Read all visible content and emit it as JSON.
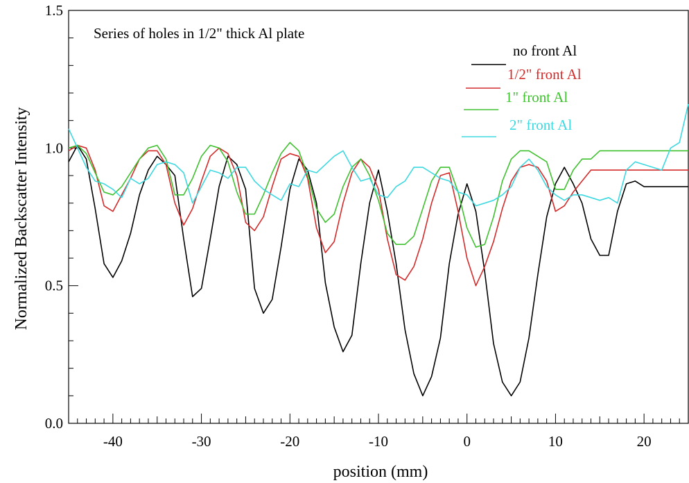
{
  "chart_data": {
    "type": "line",
    "title": "",
    "annotation": "Series of holes in 1/2\" thick Al plate",
    "xlabel": "position (mm)",
    "ylabel": "Normalized Backscatter Intensity",
    "xlim": [
      -45,
      25
    ],
    "ylim": [
      0.0,
      1.5
    ],
    "xticks": [
      -40,
      -30,
      -20,
      -10,
      0,
      10,
      20
    ],
    "xtick_labels": [
      "-40",
      "-30",
      "-20",
      "-10",
      "0",
      "10",
      "20"
    ],
    "yticks": [
      0.0,
      0.5,
      1.0,
      1.5
    ],
    "ytick_labels": [
      "0.0",
      "0.5",
      "1.0",
      "1.5"
    ],
    "grid": false,
    "legend_position": "top-right",
    "series": [
      {
        "name": "no front Al",
        "color": "#000000",
        "x": [
          -45,
          -44,
          -43,
          -42,
          -41,
          -40,
          -39,
          -38,
          -37,
          -36,
          -35,
          -34,
          -33,
          -32,
          -31,
          -30,
          -29,
          -28,
          -27,
          -26,
          -25,
          -24,
          -23,
          -22,
          -21,
          -20,
          -19,
          -18,
          -17,
          -16,
          -15,
          -14,
          -13,
          -12,
          -11,
          -10,
          -9,
          -8,
          -7,
          -6,
          -5,
          -4,
          -3,
          -2,
          -1,
          0,
          1,
          2,
          3,
          4,
          5,
          6,
          7,
          8,
          9,
          10,
          11,
          12,
          13,
          14,
          15,
          16,
          17,
          18,
          19,
          20,
          21,
          22,
          23,
          24,
          25
        ],
        "y": [
          0.95,
          1.01,
          0.96,
          0.78,
          0.58,
          0.53,
          0.59,
          0.69,
          0.83,
          0.92,
          0.97,
          0.94,
          0.9,
          0.67,
          0.46,
          0.49,
          0.67,
          0.86,
          0.97,
          0.94,
          0.85,
          0.49,
          0.4,
          0.45,
          0.64,
          0.85,
          0.96,
          0.92,
          0.8,
          0.51,
          0.35,
          0.26,
          0.32,
          0.58,
          0.8,
          0.92,
          0.77,
          0.58,
          0.34,
          0.18,
          0.1,
          0.17,
          0.31,
          0.58,
          0.76,
          0.87,
          0.77,
          0.55,
          0.29,
          0.15,
          0.1,
          0.15,
          0.31,
          0.54,
          0.75,
          0.87,
          0.93,
          0.87,
          0.8,
          0.67,
          0.61,
          0.61,
          0.77,
          0.87,
          0.88,
          0.86,
          0.86,
          0.86,
          0.86,
          0.86,
          0.86
        ]
      },
      {
        "name": "1/2\" front Al",
        "color": "#d42a2a",
        "x": [
          -45,
          -44,
          -43,
          -42,
          -41,
          -40,
          -39,
          -38,
          -37,
          -36,
          -35,
          -34,
          -33,
          -32,
          -31,
          -30,
          -29,
          -28,
          -27,
          -26,
          -25,
          -24,
          -23,
          -22,
          -21,
          -20,
          -19,
          -18,
          -17,
          -16,
          -15,
          -14,
          -13,
          -12,
          -11,
          -10,
          -9,
          -8,
          -7,
          -6,
          -5,
          -4,
          -3,
          -2,
          -1,
          0,
          1,
          2,
          3,
          4,
          5,
          6,
          7,
          8,
          9,
          10,
          11,
          12,
          13,
          14,
          15,
          16,
          17,
          18,
          19,
          20,
          21,
          22,
          23,
          24,
          25
        ],
        "y": [
          0.99,
          1.01,
          1.0,
          0.92,
          0.79,
          0.77,
          0.83,
          0.89,
          0.96,
          0.99,
          0.99,
          0.94,
          0.8,
          0.72,
          0.78,
          0.88,
          0.97,
          1.0,
          0.98,
          0.9,
          0.73,
          0.7,
          0.75,
          0.86,
          0.96,
          0.98,
          0.97,
          0.89,
          0.71,
          0.62,
          0.66,
          0.8,
          0.91,
          0.96,
          0.93,
          0.85,
          0.67,
          0.54,
          0.52,
          0.57,
          0.67,
          0.8,
          0.9,
          0.91,
          0.77,
          0.6,
          0.5,
          0.57,
          0.66,
          0.78,
          0.88,
          0.93,
          0.94,
          0.93,
          0.88,
          0.77,
          0.79,
          0.84,
          0.88,
          0.92,
          0.92,
          0.92,
          0.92,
          0.92,
          0.92,
          0.92,
          0.92,
          0.92,
          0.92,
          0.92,
          0.92
        ]
      },
      {
        "name": "1\" front Al",
        "color": "#3fc12f",
        "x": [
          -45,
          -44,
          -43,
          -42,
          -41,
          -40,
          -39,
          -38,
          -37,
          -36,
          -35,
          -34,
          -33,
          -32,
          -31,
          -30,
          -29,
          -28,
          -27,
          -26,
          -25,
          -24,
          -23,
          -22,
          -21,
          -20,
          -19,
          -18,
          -17,
          -16,
          -15,
          -14,
          -13,
          -12,
          -11,
          -10,
          -9,
          -8,
          -7,
          -6,
          -5,
          -4,
          -3,
          -2,
          -1,
          0,
          1,
          2,
          3,
          4,
          5,
          6,
          7,
          8,
          9,
          10,
          11,
          12,
          13,
          14,
          15,
          16,
          17,
          18,
          19,
          20,
          21,
          22,
          23,
          24,
          25
        ],
        "y": [
          1.0,
          1.01,
          0.98,
          0.91,
          0.84,
          0.83,
          0.86,
          0.91,
          0.96,
          1.0,
          1.01,
          0.96,
          0.83,
          0.83,
          0.89,
          0.97,
          1.01,
          1.0,
          0.95,
          0.84,
          0.76,
          0.76,
          0.83,
          0.91,
          0.98,
          1.02,
          0.99,
          0.9,
          0.78,
          0.73,
          0.76,
          0.86,
          0.93,
          0.96,
          0.9,
          0.81,
          0.69,
          0.65,
          0.65,
          0.68,
          0.78,
          0.88,
          0.93,
          0.93,
          0.84,
          0.71,
          0.64,
          0.65,
          0.75,
          0.88,
          0.96,
          0.99,
          0.99,
          0.97,
          0.95,
          0.85,
          0.85,
          0.92,
          0.96,
          0.96,
          0.99,
          0.99,
          0.99,
          0.99,
          0.99,
          0.99,
          0.99,
          0.99,
          0.99,
          0.99,
          0.99
        ]
      },
      {
        "name": "2\" front Al",
        "color": "#3dd8e0",
        "x": [
          -45,
          -44,
          -43,
          -42,
          -41,
          -40,
          -39,
          -38,
          -37,
          -36,
          -35,
          -34,
          -33,
          -32,
          -31,
          -30,
          -29,
          -28,
          -27,
          -26,
          -25,
          -24,
          -23,
          -22,
          -21,
          -20,
          -19,
          -18,
          -17,
          -16,
          -15,
          -14,
          -13,
          -12,
          -11,
          -10,
          -9,
          -8,
          -7,
          -6,
          -5,
          -4,
          -3,
          -2,
          -1,
          0,
          1,
          2,
          3,
          4,
          5,
          6,
          7,
          8,
          9,
          10,
          11,
          12,
          13,
          14,
          15,
          16,
          17,
          18,
          19,
          20,
          21,
          22,
          23,
          24,
          25
        ],
        "y": [
          1.07,
          1.0,
          0.93,
          0.88,
          0.87,
          0.85,
          0.82,
          0.89,
          0.87,
          0.89,
          0.94,
          0.95,
          0.94,
          0.91,
          0.8,
          0.86,
          0.92,
          0.91,
          0.89,
          0.93,
          0.93,
          0.88,
          0.85,
          0.83,
          0.81,
          0.87,
          0.86,
          0.92,
          0.91,
          0.94,
          0.97,
          0.99,
          0.93,
          0.88,
          0.89,
          0.83,
          0.82,
          0.86,
          0.88,
          0.93,
          0.93,
          0.91,
          0.89,
          0.88,
          0.84,
          0.83,
          0.79,
          0.8,
          0.81,
          0.83,
          0.86,
          0.93,
          0.96,
          0.92,
          0.86,
          0.83,
          0.81,
          0.83,
          0.83,
          0.82,
          0.81,
          0.82,
          0.8,
          0.92,
          0.95,
          0.94,
          0.93,
          0.92,
          1.0,
          1.02,
          1.16
        ]
      }
    ]
  }
}
